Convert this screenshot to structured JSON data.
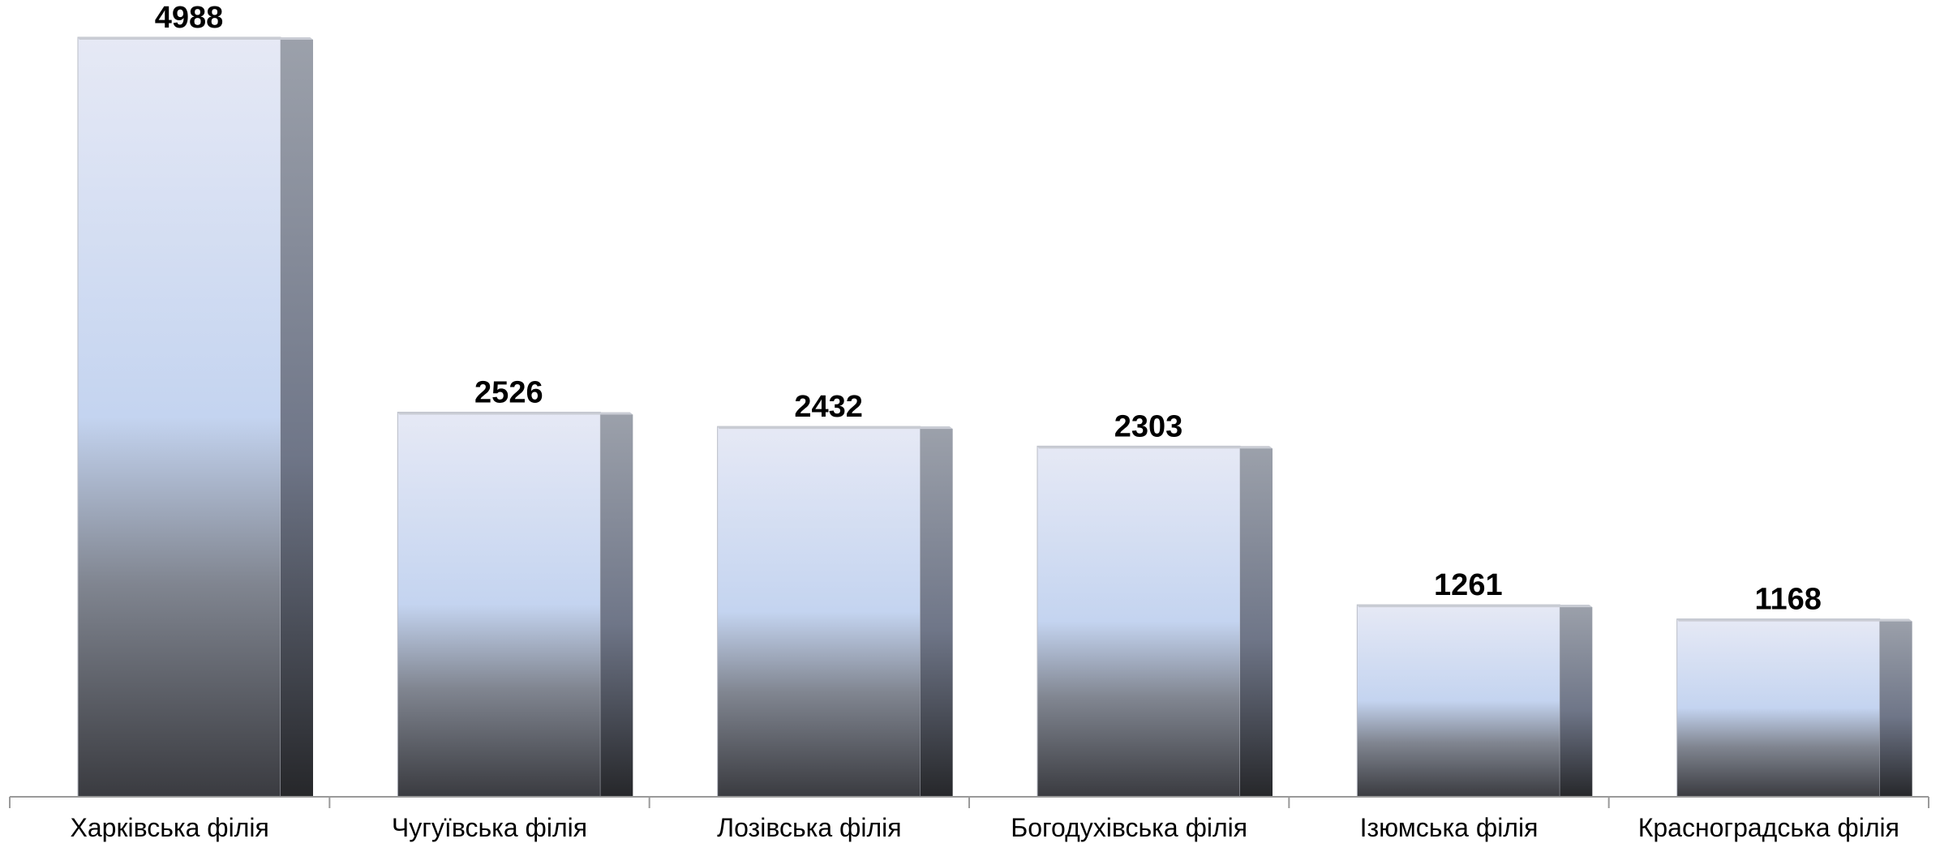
{
  "chart_data": {
    "type": "bar",
    "title": "",
    "xlabel": "",
    "ylabel": "",
    "categories": [
      "Харківська філія",
      "Чугуївська  філія",
      "Лозівська філія",
      "Богодухівська філія",
      "Ізюмська філія",
      "Красноградська філія"
    ],
    "values": [
      4988,
      2526,
      2432,
      2303,
      1261,
      1168
    ],
    "ylim": [
      0,
      4988
    ],
    "grid": false,
    "legend": "none",
    "colors": {
      "bar_top": "#e4e8f4",
      "bar_mid": "#c5d5f0",
      "bar_bottom": "#3e3f44",
      "side_top": "#9aa0aa",
      "side_bottom": "#2a2b2e",
      "axis": "#9a9a9a"
    }
  }
}
